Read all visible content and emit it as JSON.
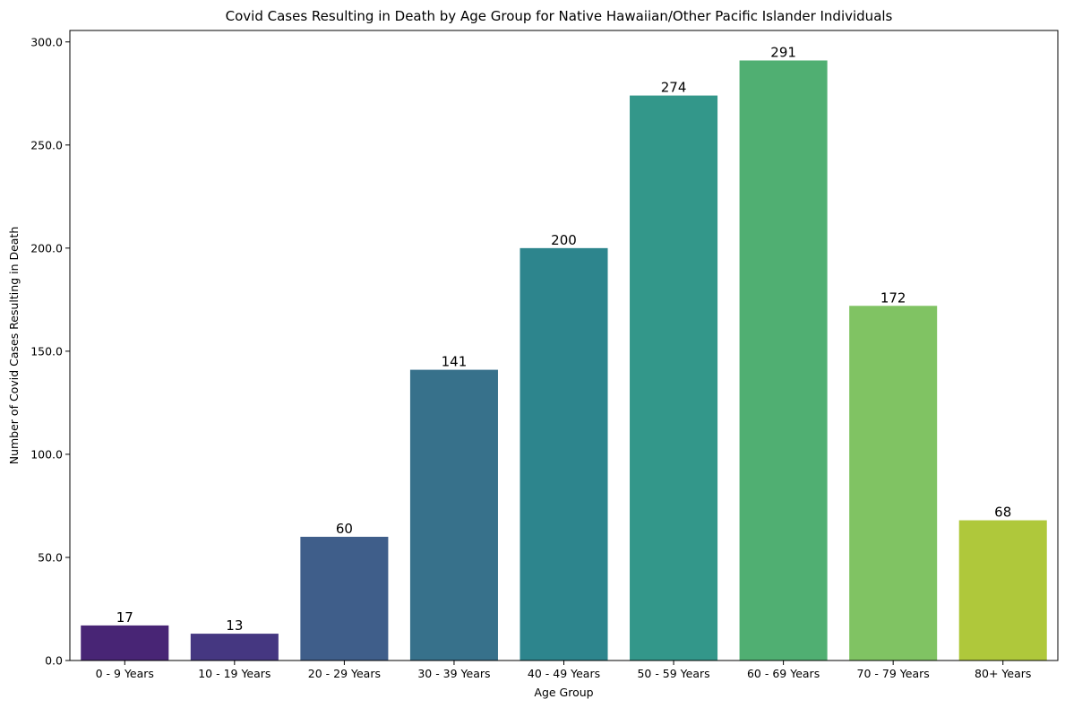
{
  "chart_data": {
    "type": "bar",
    "title": "Covid Cases Resulting in Death by Age Group for Native Hawaiian/Other Pacific Islander Individuals",
    "xlabel": "Age Group",
    "ylabel": "Number of Covid Cases Resulting in Death",
    "categories": [
      "0 - 9 Years",
      "10 - 19 Years",
      "20 - 29 Years",
      "30 - 39 Years",
      "40 - 49 Years",
      "50 - 59 Years",
      "60 - 69 Years",
      "70 - 79 Years",
      "80+ Years"
    ],
    "values": [
      17,
      13,
      60,
      141,
      200,
      274,
      291,
      172,
      68
    ],
    "data_labels": [
      "17",
      "13",
      "60",
      "141",
      "200",
      "274",
      "291",
      "172",
      "68"
    ],
    "ylim": [
      0,
      305.55
    ],
    "yticks": [
      0,
      50,
      100,
      150,
      200,
      250,
      300
    ],
    "ytick_labels": [
      "0.0",
      "50.0",
      "100.0",
      "150.0",
      "200.0",
      "250.0",
      "300.0"
    ],
    "colors": [
      "#482575",
      "#453781",
      "#3f5e8a",
      "#37718b",
      "#2d858d",
      "#33978a",
      "#50af72",
      "#80c363",
      "#afc83b"
    ],
    "grid": false,
    "legend": "none"
  }
}
